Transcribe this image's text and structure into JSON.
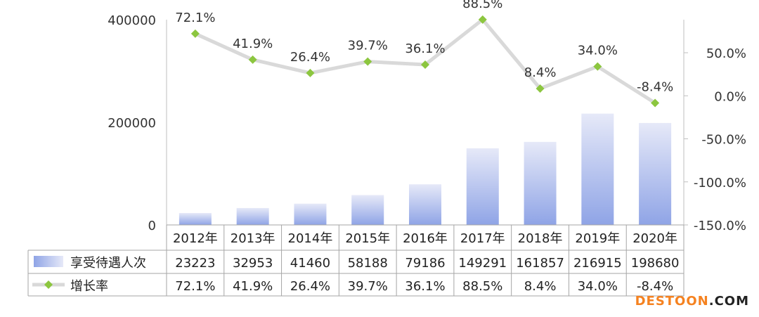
{
  "chart_data": {
    "type": "bar",
    "categories": [
      "2012年",
      "2013年",
      "2014年",
      "2015年",
      "2016年",
      "2017年",
      "2018年",
      "2019年",
      "2020年"
    ],
    "series": [
      {
        "name": "享受待遇人次",
        "type": "bar",
        "axis": "left",
        "values": [
          23223,
          32953,
          41460,
          58188,
          79186,
          149291,
          161857,
          216915,
          198680
        ]
      },
      {
        "name": "增长率",
        "type": "line",
        "axis": "right",
        "values": [
          72.1,
          41.9,
          26.4,
          39.7,
          36.1,
          88.5,
          8.4,
          34.0,
          -8.4
        ],
        "labels": [
          "72.1%",
          "41.9%",
          "26.4%",
          "39.7%",
          "36.1%",
          "88.5%",
          "8.4%",
          "34.0%",
          "-8.4%"
        ]
      }
    ],
    "y_left": {
      "ticks": [
        "0",
        "200000",
        "400000"
      ],
      "range": [
        0,
        400000
      ]
    },
    "y_right": {
      "ticks": [
        "50.0%",
        "0.0%",
        "-50.0%",
        "-100.0%",
        "-150.0%"
      ],
      "range": [
        -150,
        100
      ]
    },
    "data_table": {
      "rows": [
        {
          "legend": "享受待遇人次",
          "cells": [
            "23223",
            "32953",
            "41460",
            "58188",
            "79186",
            "149291",
            "161857",
            "216915",
            "198680"
          ]
        },
        {
          "legend": "增长率",
          "cells": [
            "72.1%",
            "41.9%",
            "26.4%",
            "39.7%",
            "36.1%",
            "88.5%",
            "8.4%",
            "34.0%",
            "-8.4%"
          ]
        }
      ]
    },
    "colors": {
      "bar_top": "#e6e9f8",
      "bar_bottom": "#8fa4e6",
      "line": "#d9d9d9",
      "marker": "#8cc63f"
    },
    "grid": false,
    "legend": "data-table-left"
  },
  "watermark": {
    "part1": "DESTOON",
    "part2": ".COM",
    "color1": "#f58220",
    "color2": "#222222"
  }
}
